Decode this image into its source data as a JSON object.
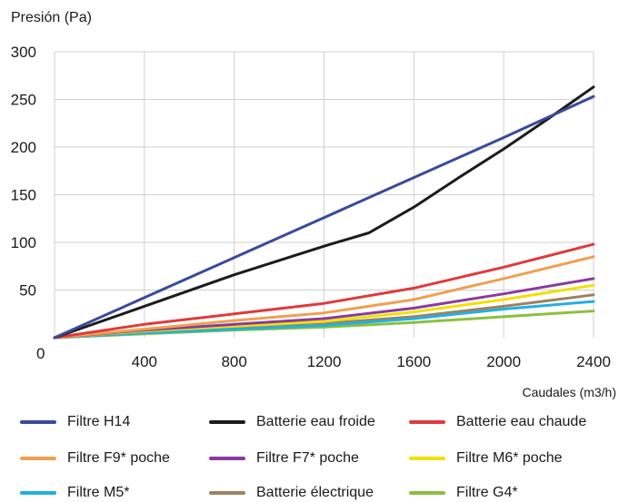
{
  "chart_data": {
    "type": "line",
    "ylabel": "Presión (Pa)",
    "xlabel": "Caudales (m3/h)",
    "xlim": [
      0,
      2400
    ],
    "ylim": [
      0,
      300
    ],
    "xticks": [
      400,
      800,
      1200,
      1600,
      2000,
      2400
    ],
    "yticks": [
      50,
      100,
      150,
      200,
      250,
      300
    ],
    "y_origin_label": "0",
    "grid": true,
    "legend_position": "bottom",
    "series": [
      {
        "name": "Filtre H14",
        "color": "#3a4a9a",
        "x": [
          0,
          400,
          800,
          1200,
          1600,
          2000,
          2400
        ],
        "y": [
          0,
          42,
          84,
          126,
          168,
          210,
          253
        ]
      },
      {
        "name": "Batterie eau froide",
        "color": "#1c1c1c",
        "x": [
          0,
          400,
          800,
          1200,
          1400,
          1600,
          1800,
          2000,
          2200,
          2400
        ],
        "y": [
          0,
          33,
          66,
          96,
          110,
          137,
          168,
          198,
          230,
          263
        ]
      },
      {
        "name": "Batterie eau chaude",
        "color": "#e03a3a",
        "x": [
          0,
          400,
          800,
          1200,
          1600,
          2000,
          2400
        ],
        "y": [
          0,
          14,
          25,
          36,
          52,
          74,
          98
        ]
      },
      {
        "name": "Filtre F9* poche",
        "color": "#f0a050",
        "x": [
          0,
          400,
          800,
          1200,
          1600,
          2000,
          2400
        ],
        "y": [
          0,
          9,
          18,
          26,
          40,
          62,
          85
        ]
      },
      {
        "name": "Filtre F7* poche",
        "color": "#8a3aa0",
        "x": [
          0,
          400,
          800,
          1200,
          1600,
          2000,
          2400
        ],
        "y": [
          0,
          8,
          14,
          20,
          31,
          46,
          62
        ]
      },
      {
        "name": "Filtre M6* poche",
        "color": "#f2e000",
        "x": [
          0,
          400,
          800,
          1200,
          1600,
          2000,
          2400
        ],
        "y": [
          0,
          7,
          12,
          17,
          27,
          40,
          55
        ]
      },
      {
        "name": "Filtre M5*",
        "color": "#22b0e0",
        "x": [
          0,
          400,
          800,
          1200,
          1600,
          2000,
          2400
        ],
        "y": [
          0,
          5,
          9,
          13,
          20,
          30,
          38
        ]
      },
      {
        "name": "Batterie électrique",
        "color": "#a08060",
        "x": [
          0,
          400,
          800,
          1200,
          1600,
          2000,
          2400
        ],
        "y": [
          0,
          6,
          11,
          15,
          22,
          33,
          45
        ]
      },
      {
        "name": "Filtre G4*",
        "color": "#8ac040",
        "x": [
          0,
          400,
          800,
          1200,
          1600,
          2000,
          2400
        ],
        "y": [
          0,
          4,
          8,
          11,
          16,
          22,
          28
        ]
      }
    ]
  }
}
